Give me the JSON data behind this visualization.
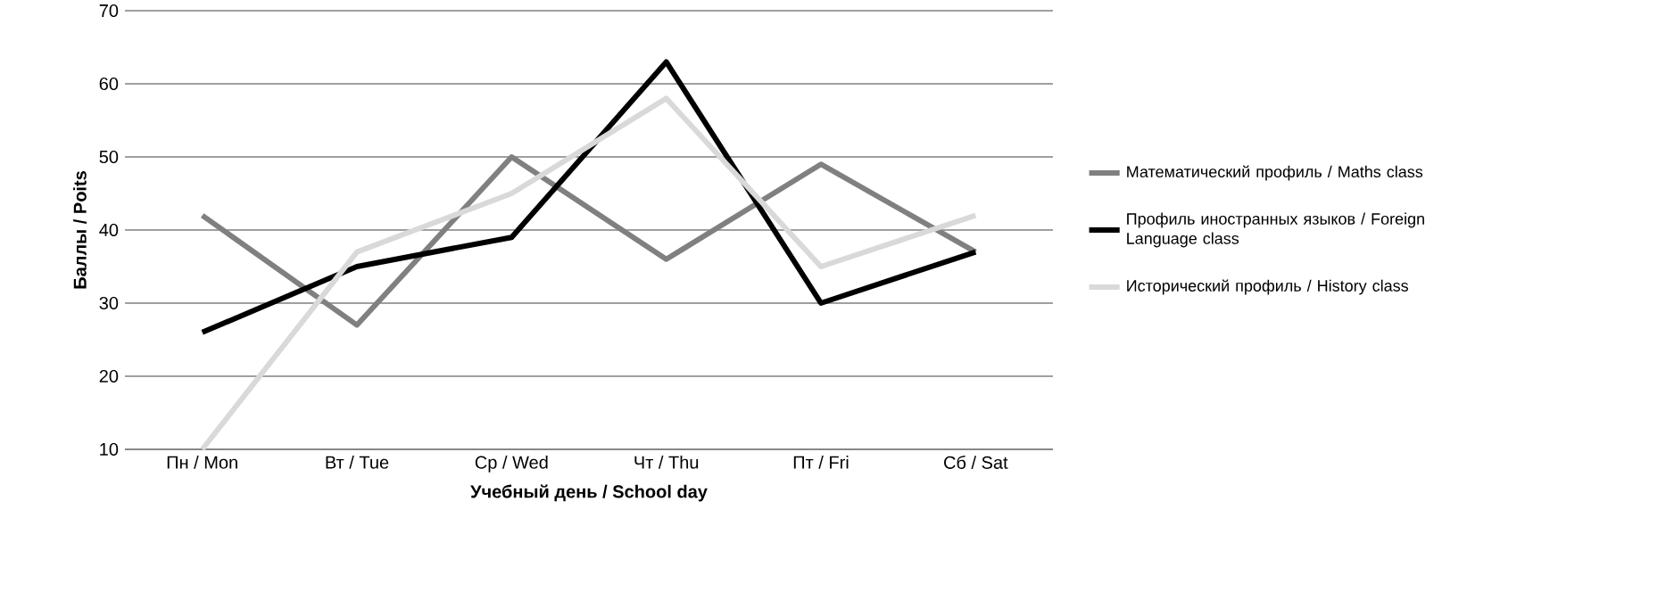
{
  "chart_data": {
    "type": "line",
    "xlabel": "Учебный день / School day",
    "ylabel": "Баллы / Poits",
    "categories": [
      "Пн / Mon",
      "Вт / Tue",
      "Ср / Wed",
      "Чт / Thu",
      "Пт / Fri",
      "Сб / Sat"
    ],
    "series": [
      {
        "name": "Математический профиль / Maths class",
        "color": "#808080",
        "values": [
          42,
          27,
          50,
          36,
          49,
          37
        ]
      },
      {
        "name": "Профиль иностранных языков / Foreign Language class",
        "color": "#000000",
        "values": [
          26,
          35,
          39,
          63,
          30,
          37
        ]
      },
      {
        "name": "Исторический  профиль / History class",
        "color": "#d9d9d9",
        "values": [
          10,
          37,
          45,
          58,
          35,
          42
        ]
      }
    ],
    "ylim": [
      10,
      70
    ],
    "yticks": [
      10,
      20,
      30,
      40,
      50,
      60,
      70
    ],
    "grid": "y",
    "legend": "right",
    "marker": "none",
    "line_style": "solid"
  }
}
